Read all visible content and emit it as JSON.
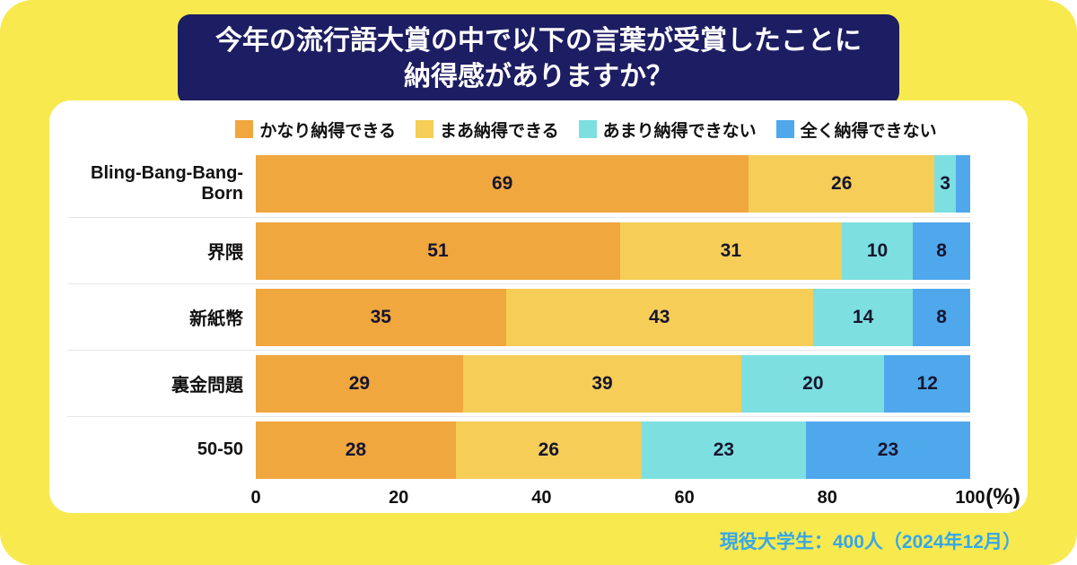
{
  "title": {
    "line1": "今年の流行語大賞の中で以下の言葉が受賞したことに",
    "line2": "納得感がありますか？"
  },
  "footer": {
    "note": "現役大学生：400人（2024年12月）"
  },
  "colors": {
    "background": "#F8E94E",
    "title_bg": "#1D1D63",
    "card_bg": "#FFFFFF",
    "footer_text": "#35A7E9",
    "value_text": "#15152E"
  },
  "chart_data": {
    "type": "bar",
    "stacked": true,
    "orientation": "horizontal",
    "title": "今年の流行語大賞の中で以下の言葉が受賞したことに納得感がありますか？",
    "categories": [
      "Bling-Bang-Bang-Born",
      "界隈",
      "新紙幣",
      "裏金問題",
      "50-50"
    ],
    "series": [
      {
        "name": "かなり納得できる",
        "color": "#F0A73E",
        "values": [
          69,
          51,
          35,
          29,
          28
        ]
      },
      {
        "name": "まあ納得できる",
        "color": "#F6CE57",
        "values": [
          26,
          31,
          43,
          39,
          26
        ]
      },
      {
        "name": "あまり納得できない",
        "color": "#7DDFE0",
        "values": [
          3,
          10,
          14,
          20,
          23
        ]
      },
      {
        "name": "全く納得できない",
        "color": "#4FA8EC",
        "values": [
          2,
          8,
          8,
          12,
          23
        ]
      }
    ],
    "xlim": [
      0,
      100
    ],
    "x_ticks": [
      0,
      20,
      40,
      60,
      80,
      100
    ],
    "x_unit": "(%)",
    "value_label_min": 3,
    "legend_position": "top",
    "grid": false,
    "source_note": "現役大学生：400人（2024年12月）"
  }
}
